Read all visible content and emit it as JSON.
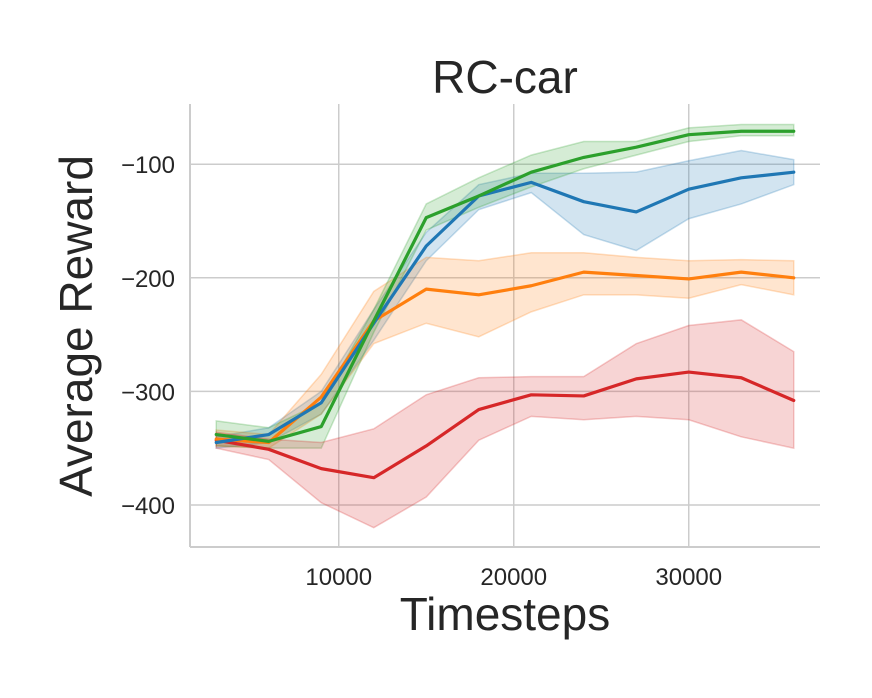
{
  "chart_data": {
    "type": "line",
    "title": "RC-car",
    "xlabel": "Timesteps",
    "ylabel": "Average Reward",
    "xlim": [
      1500,
      37500
    ],
    "ylim": [
      -437,
      -47
    ],
    "xticks": [
      10000,
      20000,
      30000
    ],
    "xtick_labels": [
      "10000",
      "20000",
      "30000"
    ],
    "yticks": [
      -100,
      -200,
      -300,
      -400
    ],
    "ytick_labels": [
      "−100",
      "−200",
      "−300",
      "−400"
    ],
    "grid": true,
    "x": [
      3000,
      6000,
      9000,
      12000,
      15000,
      18000,
      21000,
      24000,
      27000,
      30000,
      33000,
      36000
    ],
    "series": [
      {
        "name": "blue",
        "color": "#1f77b4",
        "values": [
          -345,
          -338,
          -310,
          -240,
          -172,
          -128,
          -116,
          -133,
          -142,
          -122,
          -112,
          -107
        ],
        "lower": [
          -350,
          -345,
          -320,
          -255,
          -185,
          -140,
          -125,
          -162,
          -176,
          -148,
          -135,
          -118
        ],
        "upper": [
          -340,
          -332,
          -300,
          -228,
          -160,
          -118,
          -108,
          -108,
          -107,
          -97,
          -88,
          -96
        ]
      },
      {
        "name": "orange",
        "color": "#ff7f0e",
        "values": [
          -342,
          -345,
          -305,
          -238,
          -210,
          -215,
          -207,
          -195,
          -198,
          -201,
          -195,
          -200
        ],
        "lower": [
          -348,
          -350,
          -320,
          -258,
          -240,
          -252,
          -230,
          -215,
          -215,
          -218,
          -206,
          -215
        ],
        "upper": [
          -334,
          -338,
          -285,
          -212,
          -182,
          -185,
          -178,
          -178,
          -182,
          -185,
          -184,
          -185
        ]
      },
      {
        "name": "green",
        "color": "#2ca02c",
        "values": [
          -338,
          -344,
          -331,
          -238,
          -147,
          -128,
          -107,
          -94,
          -85,
          -74,
          -71,
          -71
        ],
        "lower": [
          -348,
          -350,
          -350,
          -248,
          -158,
          -138,
          -120,
          -104,
          -92,
          -80,
          -75,
          -75
        ],
        "upper": [
          -326,
          -332,
          -310,
          -228,
          -135,
          -112,
          -92,
          -80,
          -80,
          -68,
          -65,
          -65
        ]
      },
      {
        "name": "red",
        "color": "#d62728",
        "values": [
          -343,
          -351,
          -368,
          -376,
          -348,
          -316,
          -303,
          -304,
          -289,
          -283,
          -288,
          -308
        ],
        "lower": [
          -350,
          -360,
          -398,
          -420,
          -393,
          -343,
          -322,
          -325,
          -322,
          -325,
          -340,
          -350
        ],
        "upper": [
          -336,
          -342,
          -345,
          -333,
          -303,
          -288,
          -287,
          -287,
          -258,
          -242,
          -237,
          -265
        ]
      }
    ]
  }
}
